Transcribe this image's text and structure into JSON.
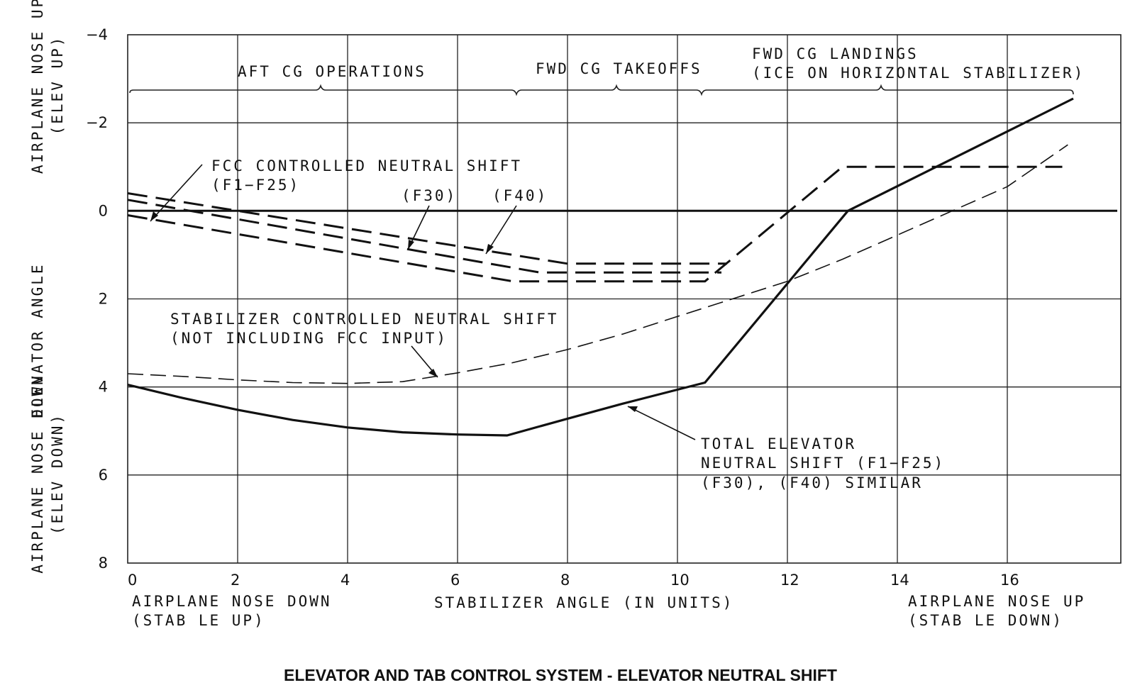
{
  "caption": "ELEVATOR AND TAB CONTROL SYSTEM - ELEVATOR NEUTRAL SHIFT",
  "chart_data": {
    "type": "line",
    "title": "",
    "xlabel": "STABILIZER ANGLE (IN UNITS)",
    "x_sub_labels": {
      "left": [
        "AIRPLANE NOSE DOWN",
        "(STAB LE UP)"
      ],
      "right": [
        "AIRPLANE NOSE UP",
        "(STAB LE DOWN)"
      ]
    },
    "ylabel": "ELEVATOR ANGLE",
    "y_sub_labels": {
      "top": [
        "AIRPLANE NOSE UP",
        "(ELEV UP)"
      ],
      "bottom": [
        "AIRPLANE NOSE DOWN",
        "(ELEV DOWN)"
      ]
    },
    "xlim": [
      0,
      18
    ],
    "ylim": [
      -4,
      8
    ],
    "y_inverted": true,
    "x_ticks": [
      0,
      2,
      4,
      6,
      8,
      10,
      12,
      14,
      16
    ],
    "y_ticks": [
      -4,
      -2,
      0,
      2,
      4,
      6,
      8
    ],
    "x_tick_labels": [
      "0",
      "2",
      "4",
      "6",
      "8",
      "10",
      "12",
      "14",
      "16"
    ],
    "y_tick_labels": [
      "−4",
      "−2",
      "0",
      "2",
      "4",
      "6",
      "8"
    ],
    "grid": true,
    "regions": [
      {
        "label": [
          "AFT CG OPERATIONS"
        ],
        "x": [
          0,
          7
        ]
      },
      {
        "label": [
          "FWD CG TAKEOFFS"
        ],
        "x": [
          7,
          10.3
        ]
      },
      {
        "label": [
          "FWD CG LANDINGS",
          "(ICE ON HORIZONTAL STABILIZER)"
        ],
        "x": [
          10.3,
          17.2
        ]
      }
    ],
    "series": [
      {
        "key": "zero",
        "style": "solid",
        "x": [
          0,
          18
        ],
        "y": [
          0,
          0
        ]
      },
      {
        "key": "f1f25",
        "style": "dashed",
        "x": [
          0,
          7,
          10.5,
          13,
          17
        ],
        "y": [
          0.1,
          1.6,
          1.6,
          -1,
          -1
        ]
      },
      {
        "key": "f30",
        "style": "dashed",
        "x": [
          0,
          7.5,
          10.8
        ],
        "y": [
          -0.25,
          1.4,
          1.4
        ]
      },
      {
        "key": "f40",
        "style": "dashed",
        "x": [
          0,
          8,
          10.9
        ],
        "y": [
          -0.4,
          1.2,
          1.2
        ]
      },
      {
        "key": "stab",
        "style": "thin-dashed",
        "x": [
          0,
          1,
          2,
          3,
          4,
          5,
          6,
          7,
          8,
          9,
          10,
          11,
          12,
          13,
          14,
          15,
          16,
          17.1
        ],
        "y": [
          3.7,
          3.76,
          3.84,
          3.9,
          3.92,
          3.88,
          3.68,
          3.45,
          3.15,
          2.8,
          2.4,
          2.0,
          1.6,
          1.1,
          0.55,
          0.0,
          -0.55,
          -1.5
        ]
      },
      {
        "key": "total",
        "style": "solid-bold",
        "x": [
          0,
          1,
          2,
          3,
          4,
          5,
          6,
          6.9,
          8,
          9,
          10.5,
          13.1,
          17.2
        ],
        "y": [
          3.95,
          4.25,
          4.52,
          4.75,
          4.92,
          5.03,
          5.08,
          5.1,
          4.72,
          4.38,
          3.9,
          0,
          -2.55
        ]
      }
    ],
    "annotations": [
      {
        "lines": [
          "FCC CONTROLLED NEUTRAL SHIFT",
          "(F1−F25)"
        ]
      },
      {
        "lines": [
          "(F30)"
        ]
      },
      {
        "lines": [
          "(F40)"
        ]
      },
      {
        "lines": [
          "STABILIZER CONTROLLED NEUTRAL SHIFT",
          "(NOT INCLUDING FCC INPUT)"
        ]
      },
      {
        "lines": [
          "TOTAL ELEVATOR",
          "NEUTRAL SHIFT (F1−F25)",
          "(F30), (F40) SIMILAR"
        ]
      }
    ]
  }
}
